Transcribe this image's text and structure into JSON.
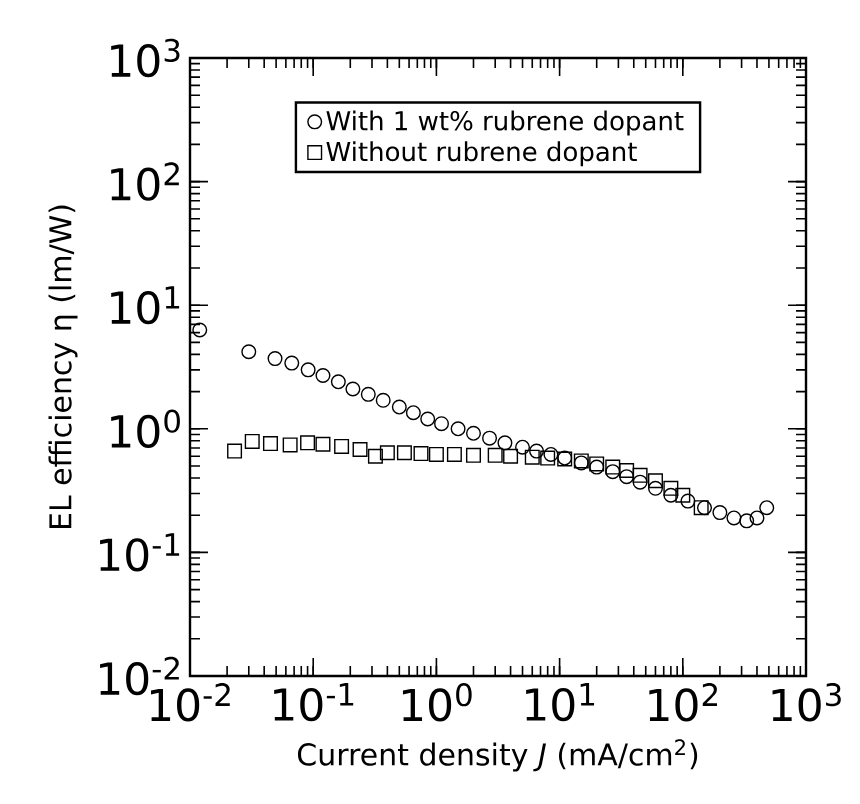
{
  "chart_data": {
    "type": "scatter",
    "xlabel": "Current density *J* (mA/cm$^{2}$)",
    "ylabel": "EL efficiency η (lm/W)",
    "log": "xy",
    "xlim": [
      0.01,
      1000
    ],
    "ylim": [
      0.01,
      1000
    ],
    "xticks": [
      {
        "value": 0.01,
        "label": "10$^{-2}$"
      },
      {
        "value": 0.1,
        "label": "10$^{-1}$"
      },
      {
        "value": 1,
        "label": "10$^{0}$"
      },
      {
        "value": 10,
        "label": "10$^{1}$"
      },
      {
        "value": 100,
        "label": "10$^{2}$"
      },
      {
        "value": 1000,
        "label": "10$^{3}$"
      }
    ],
    "yticks": [
      {
        "value": 0.01,
        "label": "10$^{-2}$"
      },
      {
        "value": 0.1,
        "label": "10$^{-1}$"
      },
      {
        "value": 1,
        "label": "10$^{0}$"
      },
      {
        "value": 10,
        "label": "10$^{1}$"
      },
      {
        "value": 100,
        "label": "10$^{2}$"
      },
      {
        "value": 1000,
        "label": "10$^{3}$"
      }
    ],
    "legend": "top",
    "grid": false,
    "series": [
      {
        "name": "With 1 wt% rubrene dopant",
        "color": "#000000",
        "marker": "circle",
        "x": [
          0.012,
          0.03,
          0.049,
          0.067,
          0.091,
          0.12,
          0.16,
          0.21,
          0.28,
          0.37,
          0.5,
          0.65,
          0.85,
          1.1,
          1.5,
          2,
          2.7,
          3.6,
          5,
          6.5,
          8.5,
          11,
          15,
          20,
          27,
          35,
          45,
          60,
          80,
          110,
          150,
          200,
          260,
          330,
          400,
          480
        ],
        "values": [
          6.3,
          4.2,
          3.7,
          3.4,
          3.0,
          2.7,
          2.4,
          2.1,
          1.9,
          1.7,
          1.5,
          1.35,
          1.2,
          1.1,
          1.0,
          0.92,
          0.84,
          0.77,
          0.71,
          0.66,
          0.62,
          0.58,
          0.53,
          0.49,
          0.45,
          0.41,
          0.37,
          0.33,
          0.29,
          0.26,
          0.23,
          0.21,
          0.19,
          0.18,
          0.19,
          0.23
        ]
      },
      {
        "name": "Without rubrene dopant",
        "color": "#000000",
        "marker": "square",
        "x": [
          0.023,
          0.032,
          0.045,
          0.065,
          0.09,
          0.12,
          0.17,
          0.24,
          0.32,
          0.4,
          0.55,
          0.75,
          1.0,
          1.4,
          2,
          3,
          4,
          6,
          8,
          11,
          15,
          20,
          27,
          35,
          45,
          60,
          80,
          100,
          141
        ],
        "values": [
          0.66,
          0.79,
          0.76,
          0.74,
          0.77,
          0.75,
          0.72,
          0.68,
          0.6,
          0.64,
          0.64,
          0.63,
          0.62,
          0.62,
          0.61,
          0.61,
          0.6,
          0.59,
          0.58,
          0.57,
          0.55,
          0.52,
          0.49,
          0.46,
          0.42,
          0.38,
          0.33,
          0.29,
          0.23
        ]
      }
    ]
  }
}
